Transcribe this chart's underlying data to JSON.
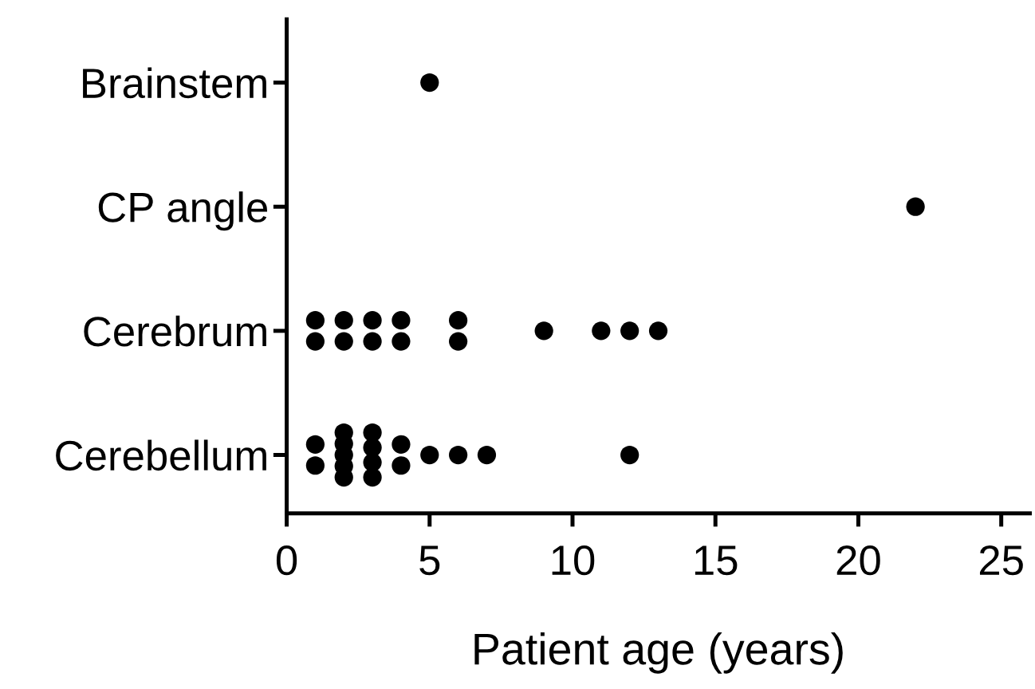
{
  "chart_data": {
    "type": "scatter",
    "orientation": "horizontal",
    "xlabel": "Patient age (years)",
    "categories": [
      "Brainstem",
      "CP angle",
      "Cerebrum",
      "Cerebellum"
    ],
    "series": [
      {
        "color": "#000000",
        "x": [
          "Brainstem",
          "CP angle",
          "Cerebrum",
          "Cerebrum",
          "Cerebrum",
          "Cerebrum",
          "Cerebrum",
          "Cerebrum",
          "Cerebrum",
          "Cerebrum",
          "Cerebrum",
          "Cerebrum",
          "Cerebrum",
          "Cerebrum",
          "Cerebrum",
          "Cerebrum",
          "Cerebellum",
          "Cerebellum",
          "Cerebellum",
          "Cerebellum",
          "Cerebellum",
          "Cerebellum",
          "Cerebellum",
          "Cerebellum",
          "Cerebellum",
          "Cerebellum",
          "Cerebellum",
          "Cerebellum",
          "Cerebellum",
          "Cerebellum",
          "Cerebellum",
          "Cerebellum",
          "Cerebellum"
        ],
        "values": [
          5,
          22,
          1,
          1,
          2,
          2,
          3,
          3,
          4,
          4,
          6,
          6,
          9,
          11,
          12,
          13,
          1,
          1,
          2,
          2,
          2,
          2,
          2,
          3,
          3,
          3,
          3,
          4,
          4,
          5,
          6,
          7,
          12
        ]
      }
    ],
    "xlim": [
      0,
      26
    ],
    "xticks": [
      0,
      5,
      10,
      15,
      20,
      25
    ],
    "marker": "circle",
    "grid": false
  }
}
